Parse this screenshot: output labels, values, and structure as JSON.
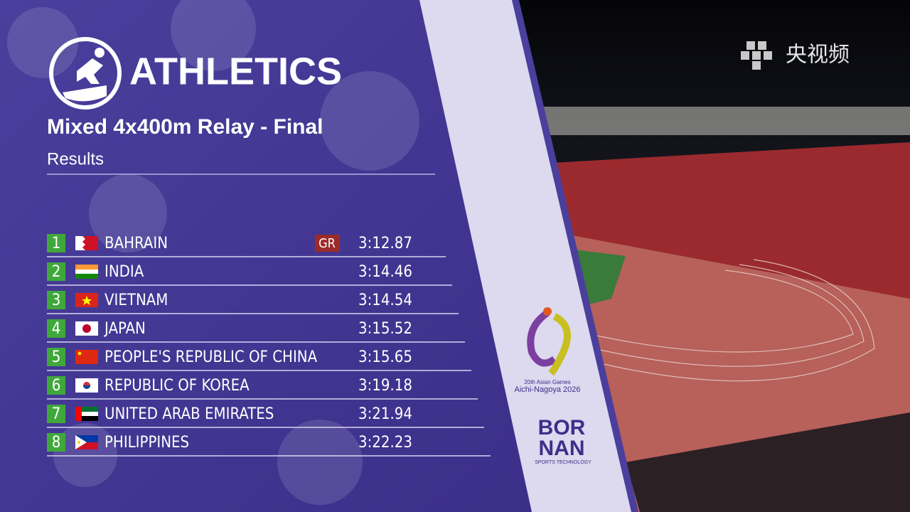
{
  "header": {
    "title": "ATHLETICS",
    "event": "Mixed 4x400m Relay - Final",
    "subtitle": "Results"
  },
  "results": [
    {
      "rank": 1,
      "country": "BAHRAIN",
      "record": "GR",
      "time": "3:12.87"
    },
    {
      "rank": 2,
      "country": "INDIA",
      "time": "3:14.46"
    },
    {
      "rank": 3,
      "country": "VIETNAM",
      "time": "3:14.54"
    },
    {
      "rank": 4,
      "country": "JAPAN",
      "time": "3:15.52"
    },
    {
      "rank": 5,
      "country": "PEOPLE'S REPUBLIC OF CHINA",
      "time": "3:15.65"
    },
    {
      "rank": 6,
      "country": "REPUBLIC OF KOREA",
      "time": "3:19.18"
    },
    {
      "rank": 7,
      "country": "UNITED ARAB EMIRATES",
      "time": "3:21.94"
    },
    {
      "rank": 8,
      "country": "PHILIPPINES",
      "time": "3:22.23"
    }
  ],
  "event_logo": {
    "line1": "20th Asian Games",
    "line2": "Aichi-Nagoya 2026"
  },
  "sponsor": {
    "line1": "BOR",
    "line2": "NAN",
    "tagline": "SPORTS TECHNOLOGY"
  },
  "watermark": "央视频"
}
